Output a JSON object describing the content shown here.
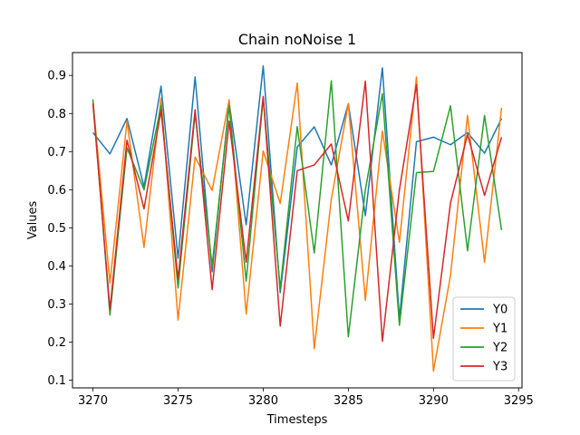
{
  "chart_data": {
    "type": "line",
    "title": "Chain noNoise 1",
    "xlabel": "Timesteps",
    "ylabel": "Values",
    "xlim": [
      3268.8,
      3295.2
    ],
    "ylim": [
      0.08,
      0.96
    ],
    "xticks": [
      3270,
      3275,
      3280,
      3285,
      3290,
      3295
    ],
    "yticks": [
      0.1,
      0.2,
      0.3,
      0.4,
      0.5,
      0.6,
      0.7,
      0.8,
      0.9
    ],
    "grid": false,
    "legend_position": "lower-right",
    "x": [
      3270,
      3271,
      3272,
      3273,
      3274,
      3275,
      3276,
      3277,
      3278,
      3279,
      3280,
      3281,
      3282,
      3283,
      3284,
      3285,
      3286,
      3287,
      3288,
      3289,
      3290,
      3291,
      3292,
      3293,
      3294
    ],
    "series": [
      {
        "name": "Y0",
        "color": "#1f77b4",
        "values": [
          0.75,
          0.694,
          0.787,
          0.608,
          0.872,
          0.42,
          0.896,
          0.385,
          0.83,
          0.508,
          0.925,
          0.33,
          0.712,
          0.765,
          0.665,
          0.826,
          0.532,
          0.92,
          0.262,
          0.726,
          0.738,
          0.718,
          0.75,
          0.696,
          0.787
        ]
      },
      {
        "name": "Y1",
        "color": "#ff7f0e",
        "values": [
          0.834,
          0.355,
          0.78,
          0.449,
          0.84,
          0.258,
          0.686,
          0.598,
          0.836,
          0.274,
          0.702,
          0.564,
          0.88,
          0.183,
          0.575,
          0.826,
          0.31,
          0.754,
          0.462,
          0.896,
          0.124,
          0.375,
          0.795,
          0.41,
          0.815
        ]
      },
      {
        "name": "Y2",
        "color": "#2ca02c",
        "values": [
          0.837,
          0.271,
          0.71,
          0.6,
          0.82,
          0.342,
          0.8,
          0.4,
          0.82,
          0.36,
          0.84,
          0.34,
          0.766,
          0.434,
          0.886,
          0.214,
          0.6,
          0.852,
          0.244,
          0.645,
          0.648,
          0.82,
          0.44,
          0.795,
          0.494
        ]
      },
      {
        "name": "Y3",
        "color": "#d62728",
        "values": [
          0.826,
          0.286,
          0.73,
          0.55,
          0.808,
          0.365,
          0.81,
          0.338,
          0.78,
          0.41,
          0.845,
          0.242,
          0.65,
          0.665,
          0.72,
          0.518,
          0.885,
          0.202,
          0.6,
          0.876,
          0.21,
          0.565,
          0.745,
          0.585,
          0.738
        ]
      }
    ]
  }
}
